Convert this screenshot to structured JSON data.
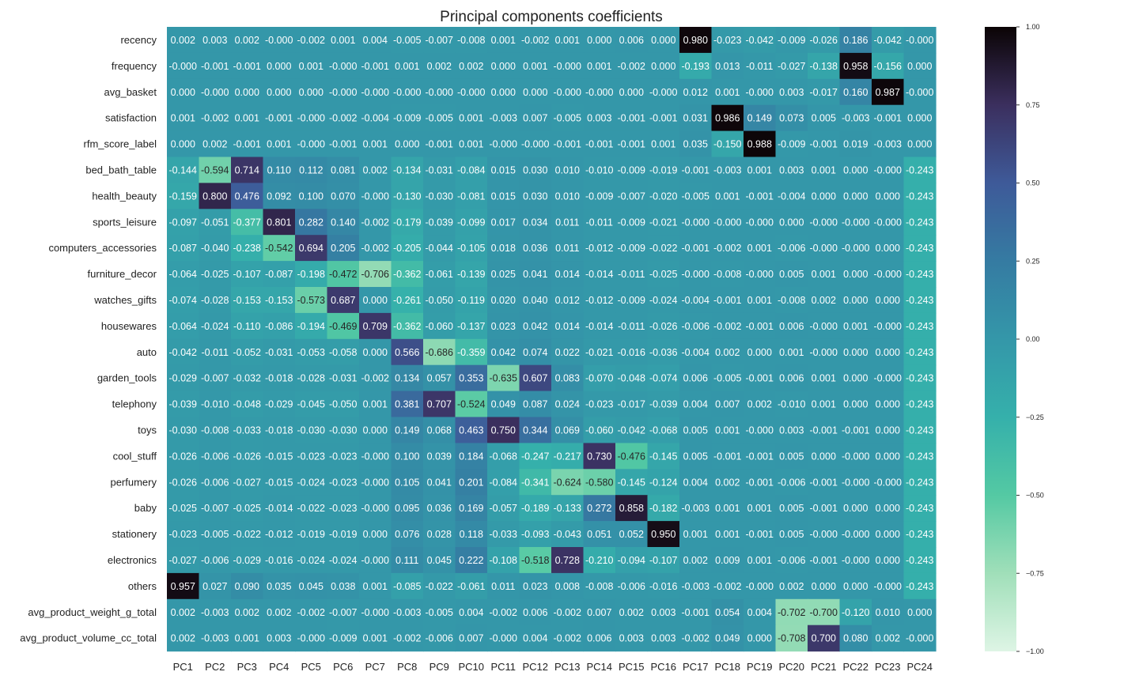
{
  "chart_data": {
    "type": "heatmap",
    "title": "Principal components coefficients",
    "colormap": "mako_r",
    "vmin": -1.0,
    "vmax": 1.0,
    "colorbar_ticks": [
      1.0,
      0.75,
      0.5,
      0.25,
      0.0,
      -0.25,
      -0.5,
      -0.75,
      -1.0
    ],
    "colorbar_tick_labels": [
      "1.00",
      "0.75",
      "0.50",
      "0.25",
      "0.00",
      "−0.25",
      "−0.50",
      "−0.75",
      "−1.00"
    ],
    "columns": [
      "PC1",
      "PC2",
      "PC3",
      "PC4",
      "PC5",
      "PC6",
      "PC7",
      "PC8",
      "PC9",
      "PC10",
      "PC11",
      "PC12",
      "PC13",
      "PC14",
      "PC15",
      "PC16",
      "PC17",
      "PC18",
      "PC19",
      "PC20",
      "PC21",
      "PC22",
      "PC23",
      "PC24"
    ],
    "rows": [
      "recency",
      "frequency",
      "avg_basket",
      "satisfaction",
      "rfm_score_label",
      "bed_bath_table",
      "health_beauty",
      "sports_leisure",
      "computers_accessories",
      "furniture_decor",
      "watches_gifts",
      "housewares",
      "auto",
      "garden_tools",
      "telephony",
      "toys",
      "cool_stuff",
      "perfumery",
      "baby",
      "stationery",
      "electronics",
      "others",
      "avg_product_weight_g_total",
      "avg_product_volume_cc_total"
    ],
    "values": [
      [
        0.002,
        0.003,
        0.002,
        -0.0,
        -0.002,
        0.001,
        0.004,
        -0.005,
        -0.007,
        -0.008,
        0.001,
        -0.002,
        0.001,
        0.0,
        0.006,
        0.0,
        0.98,
        -0.023,
        -0.042,
        -0.009,
        -0.026,
        0.186,
        -0.042,
        -0.0
      ],
      [
        -0.0,
        -0.001,
        -0.001,
        0.0,
        0.001,
        -0.0,
        -0.001,
        0.001,
        0.002,
        0.002,
        0.0,
        0.001,
        -0.0,
        0.001,
        -0.002,
        0.0,
        -0.193,
        0.013,
        -0.011,
        -0.027,
        -0.138,
        0.958,
        -0.156,
        0.0
      ],
      [
        0.0,
        -0.0,
        0.0,
        0.0,
        0.0,
        -0.0,
        -0.0,
        -0.0,
        -0.0,
        -0.0,
        0.0,
        0.0,
        -0.0,
        -0.0,
        0.0,
        -0.0,
        0.012,
        0.001,
        -0.0,
        0.003,
        -0.017,
        0.16,
        0.987,
        -0.0
      ],
      [
        0.001,
        -0.002,
        0.001,
        -0.001,
        -0.0,
        -0.002,
        -0.004,
        -0.009,
        -0.005,
        0.001,
        -0.003,
        0.007,
        -0.005,
        0.003,
        -0.001,
        -0.001,
        0.031,
        0.986,
        0.149,
        0.073,
        0.005,
        -0.003,
        -0.001,
        0.0
      ],
      [
        0.0,
        0.002,
        -0.001,
        0.001,
        -0.0,
        -0.001,
        0.001,
        0.0,
        -0.001,
        0.001,
        -0.0,
        -0.0,
        -0.001,
        -0.001,
        -0.001,
        0.001,
        0.035,
        -0.15,
        0.988,
        -0.009,
        -0.001,
        0.019,
        -0.003,
        0.0
      ],
      [
        -0.144,
        -0.594,
        0.714,
        0.11,
        0.112,
        0.081,
        0.002,
        -0.134,
        -0.031,
        -0.084,
        0.015,
        0.03,
        0.01,
        -0.01,
        -0.009,
        -0.019,
        -0.001,
        -0.003,
        0.001,
        0.003,
        0.001,
        0.0,
        -0.0,
        -0.243
      ],
      [
        -0.159,
        0.8,
        0.476,
        0.092,
        0.1,
        0.07,
        -0.0,
        -0.13,
        -0.03,
        -0.081,
        0.015,
        0.03,
        0.01,
        -0.009,
        -0.007,
        -0.02,
        -0.005,
        0.001,
        -0.001,
        -0.004,
        0.0,
        0.0,
        0.0,
        -0.243
      ],
      [
        -0.097,
        -0.051,
        -0.377,
        0.801,
        0.282,
        0.14,
        -0.002,
        -0.179,
        -0.039,
        -0.099,
        0.017,
        0.034,
        0.011,
        -0.011,
        -0.009,
        -0.021,
        -0.0,
        -0.0,
        -0.0,
        0.0,
        -0.0,
        -0.0,
        -0.0,
        -0.243
      ],
      [
        -0.087,
        -0.04,
        -0.238,
        -0.542,
        0.694,
        0.205,
        -0.002,
        -0.205,
        -0.044,
        -0.105,
        0.018,
        0.036,
        0.011,
        -0.012,
        -0.009,
        -0.022,
        -0.001,
        -0.002,
        0.001,
        -0.006,
        -0.0,
        -0.0,
        0.0,
        -0.243
      ],
      [
        -0.064,
        -0.025,
        -0.107,
        -0.087,
        -0.198,
        -0.472,
        -0.706,
        -0.362,
        -0.061,
        -0.139,
        0.025,
        0.041,
        0.014,
        -0.014,
        -0.011,
        -0.025,
        -0.0,
        -0.008,
        -0.0,
        0.005,
        0.001,
        0.0,
        -0.0,
        -0.243
      ],
      [
        -0.074,
        -0.028,
        -0.153,
        -0.153,
        -0.573,
        0.687,
        0.0,
        -0.261,
        -0.05,
        -0.119,
        0.02,
        0.04,
        0.012,
        -0.012,
        -0.009,
        -0.024,
        -0.004,
        -0.001,
        0.001,
        -0.008,
        0.002,
        0.0,
        0.0,
        -0.243
      ],
      [
        -0.064,
        -0.024,
        -0.11,
        -0.086,
        -0.194,
        -0.469,
        0.709,
        -0.362,
        -0.06,
        -0.137,
        0.023,
        0.042,
        0.014,
        -0.014,
        -0.011,
        -0.026,
        -0.006,
        -0.002,
        -0.001,
        0.006,
        -0.0,
        0.001,
        -0.0,
        -0.243
      ],
      [
        -0.042,
        -0.011,
        -0.052,
        -0.031,
        -0.053,
        -0.058,
        0.0,
        0.566,
        -0.686,
        -0.359,
        0.042,
        0.074,
        0.022,
        -0.021,
        -0.016,
        -0.036,
        -0.004,
        0.002,
        0.0,
        0.001,
        -0.0,
        0.0,
        0.0,
        -0.243
      ],
      [
        -0.029,
        -0.007,
        -0.032,
        -0.018,
        -0.028,
        -0.031,
        -0.002,
        0.134,
        0.057,
        0.353,
        -0.635,
        0.607,
        0.083,
        -0.07,
        -0.048,
        -0.074,
        0.006,
        -0.005,
        -0.001,
        0.006,
        0.001,
        0.0,
        -0.0,
        -0.243
      ],
      [
        -0.039,
        -0.01,
        -0.048,
        -0.029,
        -0.045,
        -0.05,
        0.001,
        0.381,
        0.707,
        -0.524,
        0.049,
        0.087,
        0.024,
        -0.023,
        -0.017,
        -0.039,
        0.004,
        0.007,
        0.002,
        -0.01,
        0.001,
        0.0,
        0.0,
        -0.243
      ],
      [
        -0.03,
        -0.008,
        -0.033,
        -0.018,
        -0.03,
        -0.03,
        0.0,
        0.149,
        0.068,
        0.463,
        0.75,
        0.344,
        0.069,
        -0.06,
        -0.042,
        -0.068,
        0.005,
        0.001,
        -0.0,
        0.003,
        -0.001,
        -0.001,
        0.0,
        -0.243
      ],
      [
        -0.026,
        -0.006,
        -0.026,
        -0.015,
        -0.023,
        -0.023,
        -0.0,
        0.1,
        0.039,
        0.184,
        -0.068,
        -0.247,
        -0.217,
        0.73,
        -0.476,
        -0.145,
        0.005,
        -0.001,
        -0.001,
        0.005,
        0.0,
        -0.0,
        0.0,
        -0.243
      ],
      [
        -0.026,
        -0.006,
        -0.027,
        -0.015,
        -0.024,
        -0.023,
        -0.0,
        0.105,
        0.041,
        0.201,
        -0.084,
        -0.341,
        -0.624,
        -0.58,
        -0.145,
        -0.124,
        0.004,
        0.002,
        -0.001,
        -0.006,
        -0.001,
        -0.0,
        -0.0,
        -0.243
      ],
      [
        -0.025,
        -0.007,
        -0.025,
        -0.014,
        -0.022,
        -0.023,
        -0.0,
        0.095,
        0.036,
        0.169,
        -0.057,
        -0.189,
        -0.133,
        0.272,
        0.858,
        -0.182,
        -0.003,
        0.001,
        0.001,
        0.005,
        -0.001,
        0.0,
        0.0,
        -0.243
      ],
      [
        -0.023,
        -0.005,
        -0.022,
        -0.012,
        -0.019,
        -0.019,
        0.0,
        0.076,
        0.028,
        0.118,
        -0.033,
        -0.093,
        -0.043,
        0.051,
        0.052,
        0.95,
        0.001,
        0.001,
        -0.001,
        0.005,
        -0.0,
        -0.0,
        0.0,
        -0.243
      ],
      [
        -0.027,
        -0.006,
        -0.029,
        -0.016,
        -0.024,
        -0.024,
        -0.0,
        0.111,
        0.045,
        0.222,
        -0.108,
        -0.518,
        0.728,
        -0.21,
        -0.094,
        -0.107,
        0.002,
        0.009,
        0.001,
        -0.006,
        -0.001,
        -0.0,
        0.0,
        -0.243
      ],
      [
        0.957,
        0.027,
        0.09,
        0.035,
        0.045,
        0.038,
        0.001,
        -0.085,
        -0.022,
        -0.061,
        0.011,
        0.023,
        0.008,
        -0.008,
        -0.006,
        -0.016,
        -0.003,
        -0.002,
        -0.0,
        0.002,
        0.0,
        0.0,
        -0.0,
        -0.243
      ],
      [
        0.002,
        -0.003,
        0.002,
        0.002,
        -0.002,
        -0.007,
        -0.0,
        -0.003,
        -0.005,
        0.004,
        -0.002,
        0.006,
        -0.002,
        0.007,
        0.002,
        0.003,
        -0.001,
        0.054,
        0.004,
        -0.702,
        -0.7,
        -0.12,
        0.01,
        0.0
      ],
      [
        0.002,
        -0.003,
        0.001,
        0.003,
        -0.0,
        -0.009,
        0.001,
        -0.002,
        -0.006,
        0.007,
        -0.0,
        0.004,
        -0.002,
        0.006,
        0.003,
        0.003,
        -0.002,
        0.049,
        0.0,
        -0.708,
        0.7,
        0.08,
        0.002,
        -0.0
      ]
    ]
  }
}
